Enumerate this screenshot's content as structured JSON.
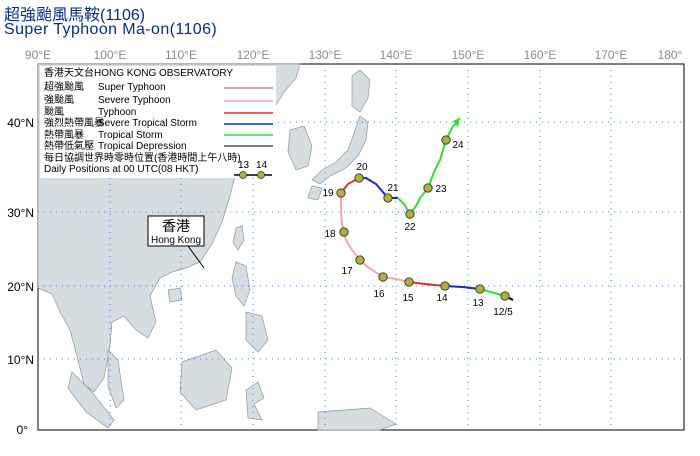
{
  "title_zh": "超強颱風馬鞍(1106)",
  "title_en": "Super Typhoon Ma-on(1106)",
  "longitude_labels": [
    "90°E",
    "100°E",
    "110°E",
    "120°E",
    "130°E",
    "140°E",
    "150°E",
    "160°E",
    "170°E",
    "180°"
  ],
  "latitude_labels": [
    "40°N",
    "30°N",
    "20°N",
    "10°N",
    "0°"
  ],
  "legend": {
    "header": "香港天文台HONG KONG OBSERVATORY",
    "items": [
      {
        "zh": "超強颱風",
        "en": "Super Typhoon",
        "color": "#c98a9a"
      },
      {
        "zh": "強颱風",
        "en": "Severe Typhoon",
        "color": "#f2a9a9"
      },
      {
        "zh": "颱風",
        "en": "Typhoon",
        "color": "#e03020"
      },
      {
        "zh": "強烈熱帶風暴",
        "en": "Severe Tropical Storm",
        "color": "#1a28c8"
      },
      {
        "zh": "熱帶風暴",
        "en": "Tropical Storm",
        "color": "#2ee02e"
      },
      {
        "zh": "熱帶低氣壓",
        "en": "Tropical Depression",
        "color": "#555555"
      }
    ],
    "daily_zh": "每日協調世界時零時位置(香港時間上午八時)",
    "daily_en": "Daily Positions at 00 UTC(08 HKT)",
    "sample_days": [
      "13",
      "14"
    ]
  },
  "hk_label": {
    "zh": "香港",
    "en": "Hong Kong"
  },
  "track_positions": [
    {
      "label": "12/5"
    },
    {
      "label": "13"
    },
    {
      "label": "14"
    },
    {
      "label": "15"
    },
    {
      "label": "16"
    },
    {
      "label": "17"
    },
    {
      "label": "18"
    },
    {
      "label": "19"
    },
    {
      "label": "20"
    },
    {
      "label": "21"
    },
    {
      "label": "22"
    },
    {
      "label": "23"
    },
    {
      "label": "24"
    }
  ],
  "colors": {
    "land": "#d6dde0",
    "sea": "#ffffff",
    "grid": "#4a7fd0",
    "title": "#0a2a8a"
  }
}
